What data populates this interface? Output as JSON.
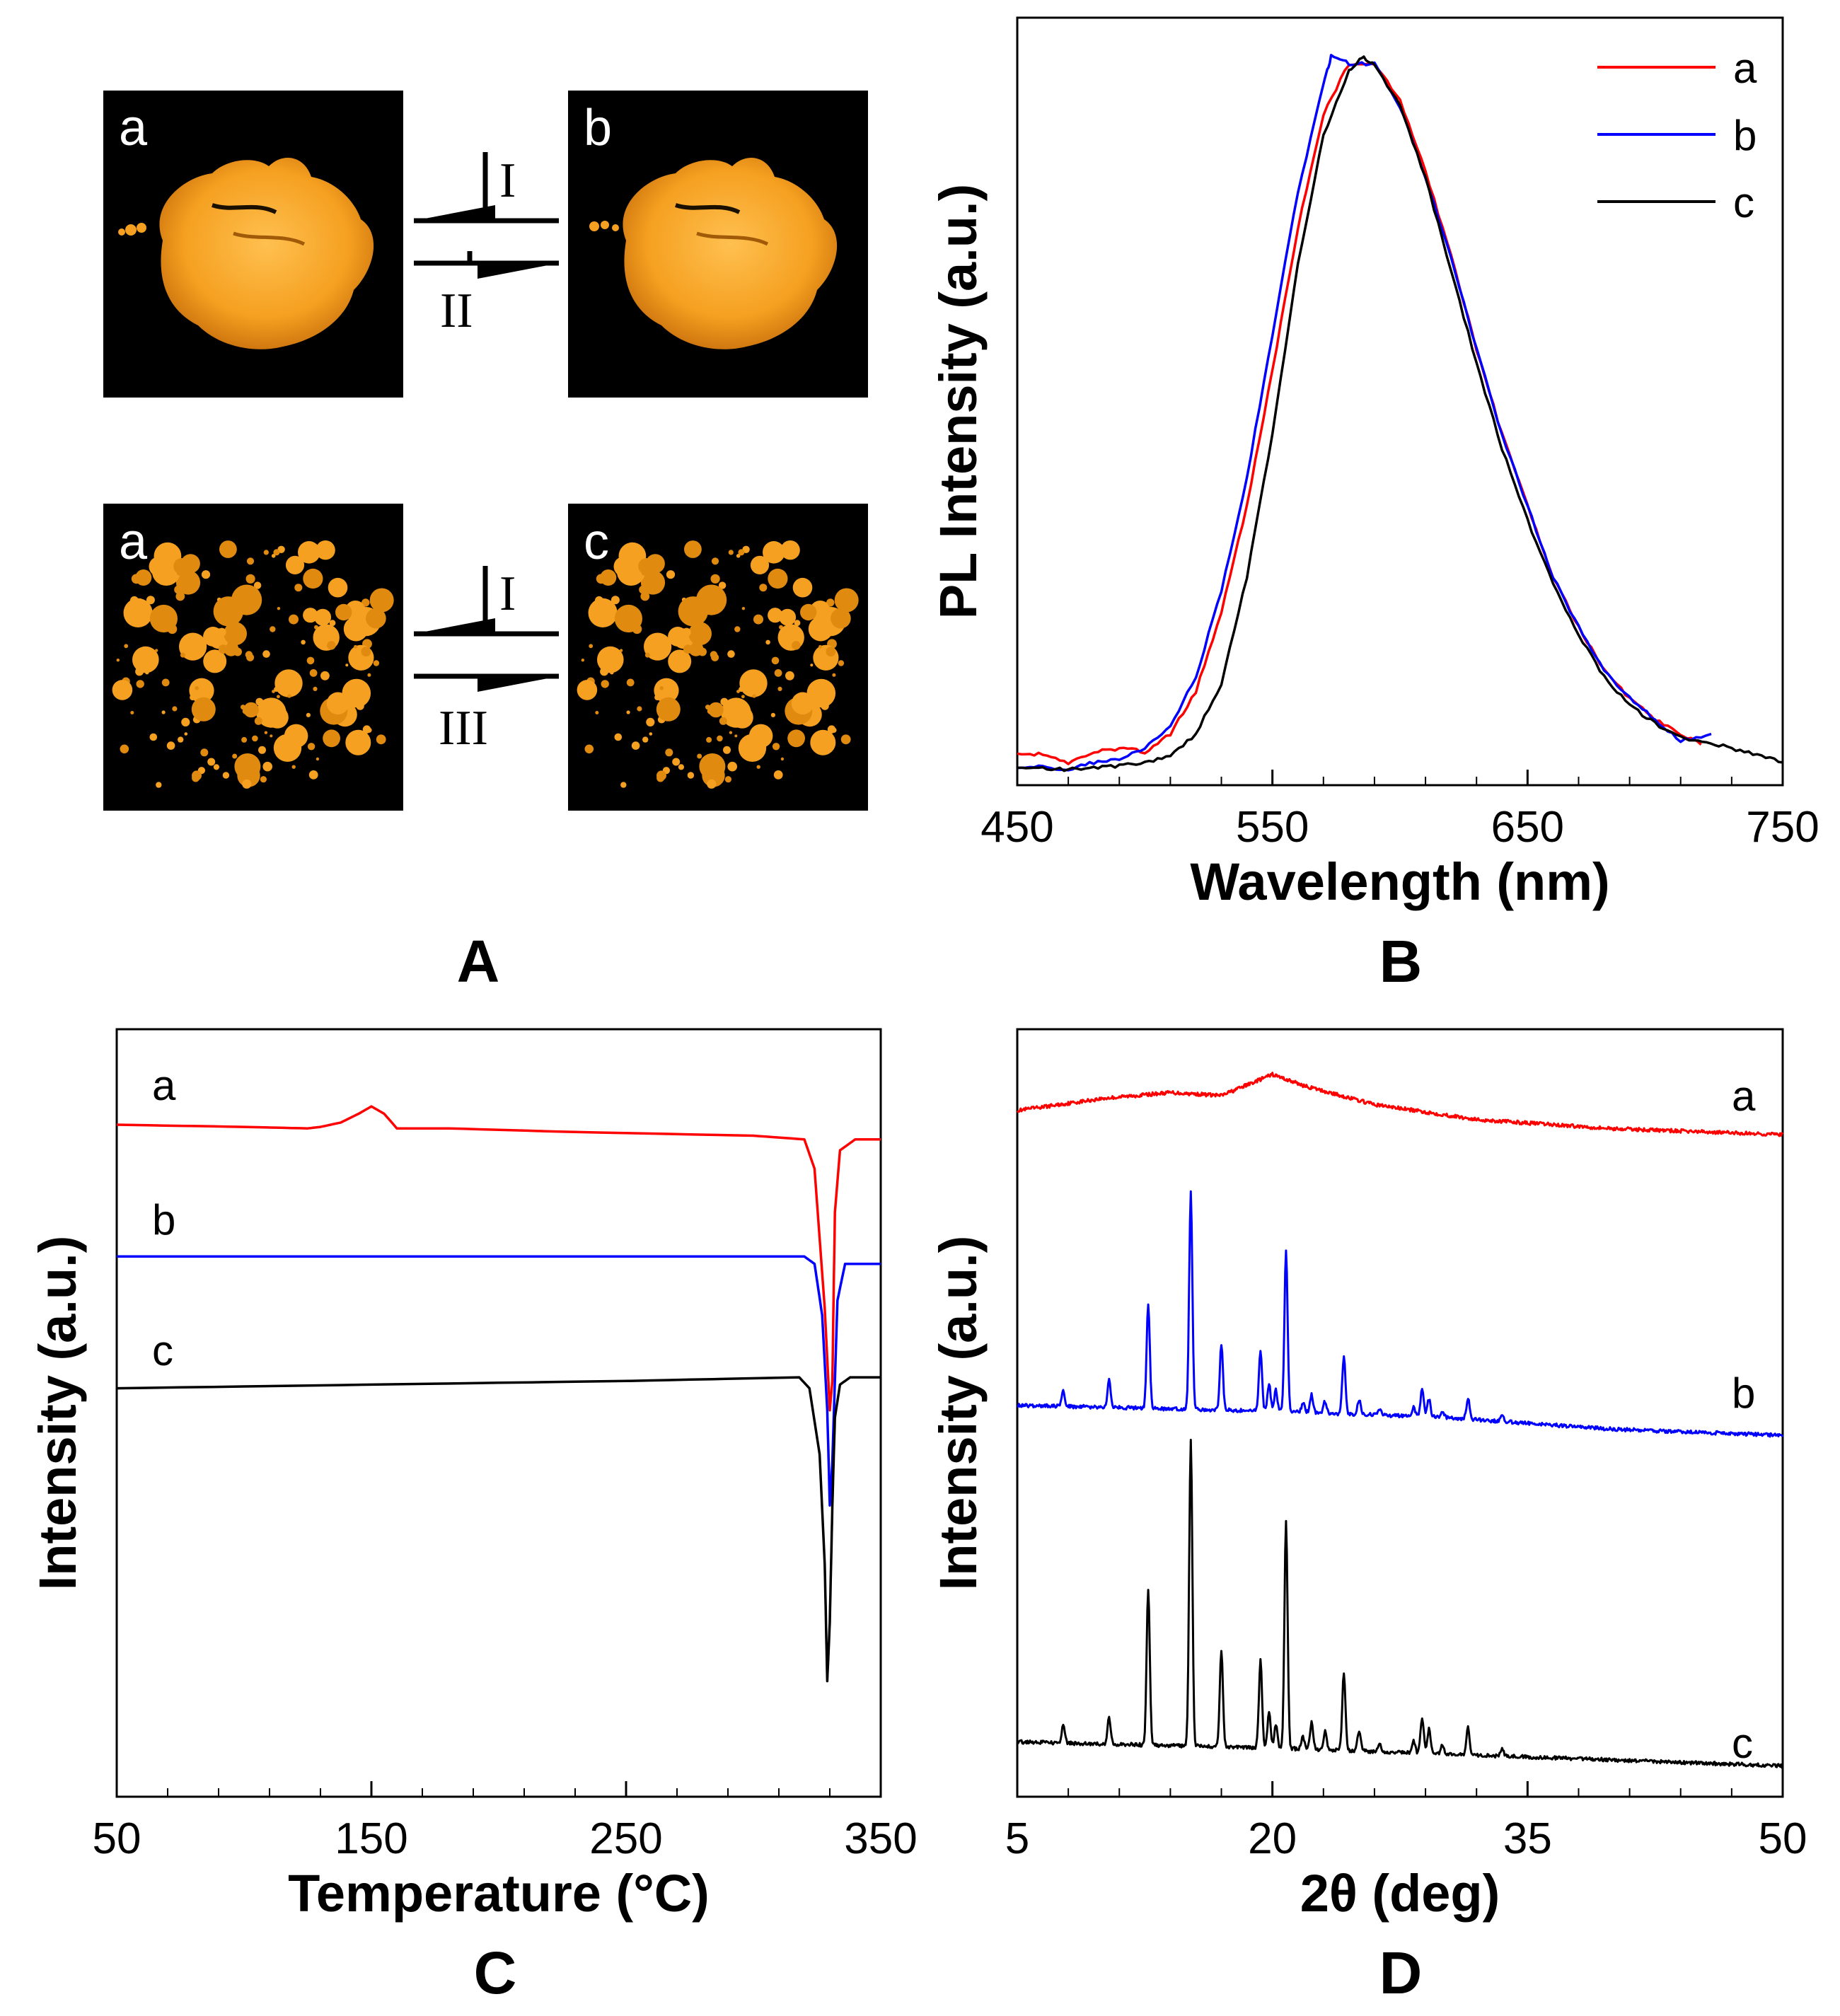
{
  "panels": {
    "A": {
      "label": "A",
      "photos": [
        {
          "label": "a",
          "row": "top",
          "side": "left"
        },
        {
          "label": "b",
          "row": "top",
          "side": "right"
        },
        {
          "label": "a",
          "row": "bottom",
          "side": "left"
        },
        {
          "label": "c",
          "row": "bottom",
          "side": "right"
        }
      ],
      "arrows": [
        {
          "row": "top",
          "back_label": "I",
          "forward_label": "II"
        },
        {
          "row": "bottom",
          "back_label": "I",
          "forward_label": "III"
        }
      ],
      "colors": {
        "background": "#000000",
        "powder": "#f5a020",
        "powder_highlight": "#ffc050"
      }
    },
    "B_label": "B",
    "C_label": "C",
    "D_label": "D"
  },
  "chart_data": [
    {
      "id": "B",
      "type": "line",
      "xlabel": "Wavelength (nm)",
      "ylabel": "PL Intensity (a.u.)",
      "xlim": [
        450,
        750
      ],
      "ylim": [
        0,
        1.0
      ],
      "xticks": [
        450,
        550,
        650,
        750
      ],
      "legend": {
        "placement": "top-right",
        "entries": [
          "a",
          "b",
          "c"
        ]
      },
      "series": [
        {
          "name": "a",
          "color": "#ff0000",
          "x": [
            450,
            460,
            470,
            480,
            490,
            500,
            510,
            520,
            530,
            540,
            550,
            560,
            570,
            580,
            590,
            600,
            610,
            620,
            630,
            640,
            650,
            660,
            670,
            680,
            690,
            700,
            710,
            718
          ],
          "y": [
            0.02,
            0.022,
            0.01,
            0.025,
            0.03,
            0.025,
            0.05,
            0.11,
            0.22,
            0.37,
            0.56,
            0.76,
            0.92,
            0.99,
            0.99,
            0.94,
            0.84,
            0.72,
            0.59,
            0.47,
            0.37,
            0.27,
            0.2,
            0.14,
            0.1,
            0.07,
            0.05,
            0.035
          ]
        },
        {
          "name": "b",
          "color": "#0000ff",
          "x": [
            450,
            460,
            470,
            480,
            490,
            500,
            510,
            520,
            530,
            540,
            550,
            560,
            570,
            573,
            580,
            590,
            600,
            610,
            620,
            630,
            640,
            650,
            660,
            670,
            680,
            690,
            700,
            710,
            722
          ],
          "y": [
            0.0,
            0.005,
            0.0,
            0.01,
            0.015,
            0.03,
            0.06,
            0.13,
            0.25,
            0.41,
            0.61,
            0.81,
            0.96,
            1.0,
            0.99,
            0.99,
            0.93,
            0.83,
            0.72,
            0.59,
            0.47,
            0.37,
            0.27,
            0.2,
            0.14,
            0.1,
            0.07,
            0.04,
            0.05
          ]
        },
        {
          "name": "c",
          "color": "#000000",
          "x": [
            450,
            460,
            470,
            480,
            490,
            500,
            510,
            520,
            530,
            540,
            550,
            560,
            570,
            580,
            585,
            590,
            600,
            610,
            620,
            630,
            640,
            650,
            660,
            670,
            680,
            690,
            700,
            710,
            720,
            730,
            740,
            750
          ],
          "y": [
            0.0,
            0.002,
            0.0,
            0.002,
            0.005,
            0.01,
            0.02,
            0.05,
            0.12,
            0.27,
            0.47,
            0.71,
            0.89,
            0.98,
            1.0,
            0.99,
            0.93,
            0.83,
            0.7,
            0.57,
            0.45,
            0.35,
            0.26,
            0.19,
            0.13,
            0.09,
            0.065,
            0.045,
            0.04,
            0.03,
            0.02,
            0.01
          ]
        }
      ]
    },
    {
      "id": "C",
      "type": "line",
      "xlabel": "Temperature (°C)",
      "ylabel": "Intensity (a.u.)",
      "xlim": [
        50,
        350
      ],
      "ylim": [
        -8,
        2
      ],
      "xticks": [
        50,
        150,
        250,
        350
      ],
      "curve_labels": [
        "a",
        "b",
        "c"
      ],
      "series": [
        {
          "name": "a",
          "color": "#ff0000",
          "x": [
            50,
            100,
            125,
            130,
            138,
            145,
            150,
            155,
            160,
            180,
            230,
            300,
            320,
            324,
            328,
            330,
            331,
            332,
            334,
            340,
            350
          ],
          "y": [
            0.0,
            -0.03,
            -0.05,
            -0.03,
            0.03,
            0.15,
            0.25,
            0.15,
            -0.05,
            -0.05,
            -0.1,
            -0.15,
            -0.2,
            -0.6,
            -2.5,
            -3.9,
            -3.5,
            -1.2,
            -0.35,
            -0.2,
            -0.2
          ]
        },
        {
          "name": "b",
          "color": "#0000ff",
          "x": [
            50,
            150,
            250,
            320,
            324,
            327,
            329,
            330,
            331,
            333,
            336,
            340,
            350
          ],
          "y": [
            -1.8,
            -1.8,
            -1.8,
            -1.8,
            -1.9,
            -2.6,
            -3.9,
            -5.2,
            -4.6,
            -2.4,
            -1.9,
            -1.9,
            -1.9
          ]
        },
        {
          "name": "c",
          "color": "#000000",
          "x": [
            50,
            150,
            250,
            318,
            322,
            326,
            328,
            329,
            330,
            331,
            332,
            334,
            338,
            350
          ],
          "y": [
            -3.6,
            -3.55,
            -3.5,
            -3.45,
            -3.6,
            -4.5,
            -6.0,
            -7.6,
            -6.8,
            -5.2,
            -4.0,
            -3.55,
            -3.45,
            -3.45
          ]
        }
      ]
    },
    {
      "id": "D",
      "type": "line",
      "xlabel": "2θ (deg)",
      "ylabel": "Intensity (a.u.)",
      "xlim": [
        5,
        50
      ],
      "ylim": [
        0,
        12
      ],
      "xticks": [
        5,
        20,
        35,
        50
      ],
      "curve_labels": [
        "a",
        "b",
        "c"
      ],
      "series": [
        {
          "name": "a",
          "color": "#ff0000",
          "baseline": [
            [
              5,
              11.0
            ],
            [
              10,
              11.2
            ],
            [
              14,
              11.3
            ],
            [
              17,
              11.25
            ],
            [
              20,
              11.6
            ],
            [
              22,
              11.4
            ],
            [
              26,
              11.1
            ],
            [
              32,
              10.85
            ],
            [
              40,
              10.7
            ],
            [
              50,
              10.6
            ]
          ],
          "peaks": []
        },
        {
          "name": "b",
          "color": "#0000ff",
          "baseline": [
            [
              5,
              6.1
            ],
            [
              20,
              6.0
            ],
            [
              30,
              5.9
            ],
            [
              40,
              5.7
            ],
            [
              50,
              5.6
            ]
          ],
          "peaks": [
            [
              7.7,
              0.25
            ],
            [
              10.4,
              0.45
            ],
            [
              12.7,
              1.75
            ],
            [
              15.2,
              3.6
            ],
            [
              17.0,
              1.1
            ],
            [
              19.3,
              1.0
            ],
            [
              19.8,
              0.45
            ],
            [
              20.2,
              0.35
            ],
            [
              20.8,
              2.7
            ],
            [
              21.8,
              0.15
            ],
            [
              22.3,
              0.3
            ],
            [
              23.1,
              0.2
            ],
            [
              24.2,
              0.95
            ],
            [
              25.1,
              0.25
            ],
            [
              26.3,
              0.1
            ],
            [
              28.3,
              0.15
            ],
            [
              28.8,
              0.45
            ],
            [
              29.2,
              0.3
            ],
            [
              30.0,
              0.1
            ],
            [
              31.5,
              0.35
            ],
            [
              33.5,
              0.1
            ]
          ]
        },
        {
          "name": "c",
          "color": "#000000",
          "baseline": [
            [
              5,
              0.5
            ],
            [
              20,
              0.4
            ],
            [
              30,
              0.3
            ],
            [
              40,
              0.2
            ],
            [
              50,
              0.1
            ]
          ],
          "peaks": [
            [
              7.7,
              0.3
            ],
            [
              10.4,
              0.45
            ],
            [
              12.7,
              2.6
            ],
            [
              15.2,
              5.1
            ],
            [
              17.0,
              1.6
            ],
            [
              19.3,
              1.45
            ],
            [
              19.8,
              0.6
            ],
            [
              20.2,
              0.4
            ],
            [
              20.8,
              3.8
            ],
            [
              21.8,
              0.2
            ],
            [
              22.3,
              0.45
            ],
            [
              23.1,
              0.3
            ],
            [
              24.2,
              1.3
            ],
            [
              25.1,
              0.35
            ],
            [
              26.3,
              0.15
            ],
            [
              28.3,
              0.2
            ],
            [
              28.8,
              0.6
            ],
            [
              29.2,
              0.4
            ],
            [
              30.0,
              0.15
            ],
            [
              31.5,
              0.45
            ],
            [
              33.5,
              0.12
            ]
          ]
        }
      ]
    }
  ]
}
